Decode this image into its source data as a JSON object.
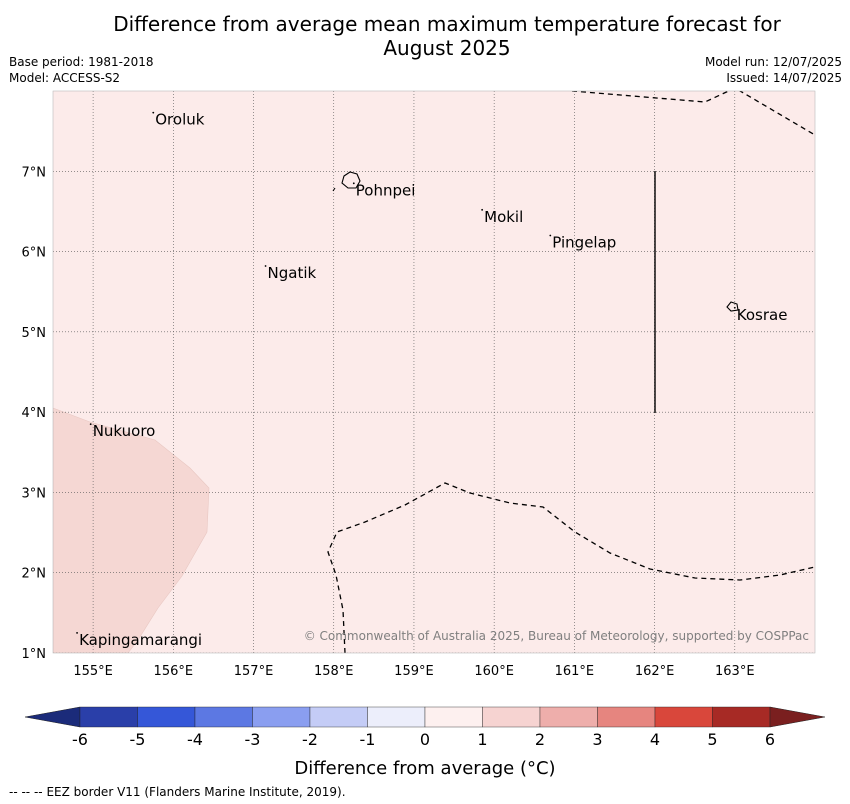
{
  "title_line1": "Difference from average mean maximum temperature forecast for",
  "title_line2": "August 2025",
  "base_period": "Base period: 1981-2018",
  "model": "Model: ACCESS-S2",
  "model_run": "Model run: 12/07/2025",
  "issued": "Issued: 14/07/2025",
  "copyright": "© Commonwealth of Australia 2025, Bureau of Meteorology, supported by COSPPac",
  "map": {
    "lon_range": [
      154.5,
      164.0
    ],
    "lat_range": [
      1.0,
      8.0
    ],
    "lon_ticks": [
      155,
      156,
      157,
      158,
      159,
      160,
      161,
      162,
      163
    ],
    "lat_ticks": [
      1,
      2,
      3,
      4,
      5,
      6,
      7
    ],
    "lon_tick_labels": [
      "155°E",
      "156°E",
      "157°E",
      "158°E",
      "159°E",
      "160°E",
      "161°E",
      "162°E",
      "163°E"
    ],
    "lat_tick_labels": [
      "1°N",
      "2°N",
      "3°N",
      "4°N",
      "5°N",
      "6°N",
      "7°N"
    ],
    "background_color": "#fcebea",
    "warm_region_color": "#f5d7d3",
    "places": [
      {
        "name": "Oroluk",
        "lon": 155.75,
        "lat": 7.73
      },
      {
        "name": "Pohnpei",
        "lon": 158.25,
        "lat": 6.85
      },
      {
        "name": "Mokil",
        "lon": 159.85,
        "lat": 6.52
      },
      {
        "name": "Pingelap",
        "lon": 160.7,
        "lat": 6.2
      },
      {
        "name": "Ngatik",
        "lon": 157.15,
        "lat": 5.82
      },
      {
        "name": "Kosrae",
        "lon": 163.0,
        "lat": 5.3
      },
      {
        "name": "Nukuoro",
        "lon": 154.97,
        "lat": 3.85
      },
      {
        "name": "Kapingamarangi",
        "lon": 154.8,
        "lat": 1.25
      }
    ]
  },
  "colorbar": {
    "label": "Difference from average (°C)",
    "ticks": [
      "-6",
      "-5",
      "-4",
      "-3",
      "-2",
      "-1",
      "0",
      "1",
      "2",
      "3",
      "4",
      "5",
      "6"
    ],
    "low_extend_color": "#1b2b7a",
    "high_extend_color": "#7a1f1f",
    "colors": [
      "#2a3fa9",
      "#3557d8",
      "#5c78e3",
      "#8a9ef0",
      "#c4ccf6",
      "#eceefb",
      "#fdf0ef",
      "#f6d3d1",
      "#eeaeab",
      "#e6857f",
      "#d9473b",
      "#a72a25"
    ]
  },
  "legend": {
    "line_sample": "-- -- --",
    "text": "EEZ border V11 (Flanders Marine Institute, 2019)."
  }
}
